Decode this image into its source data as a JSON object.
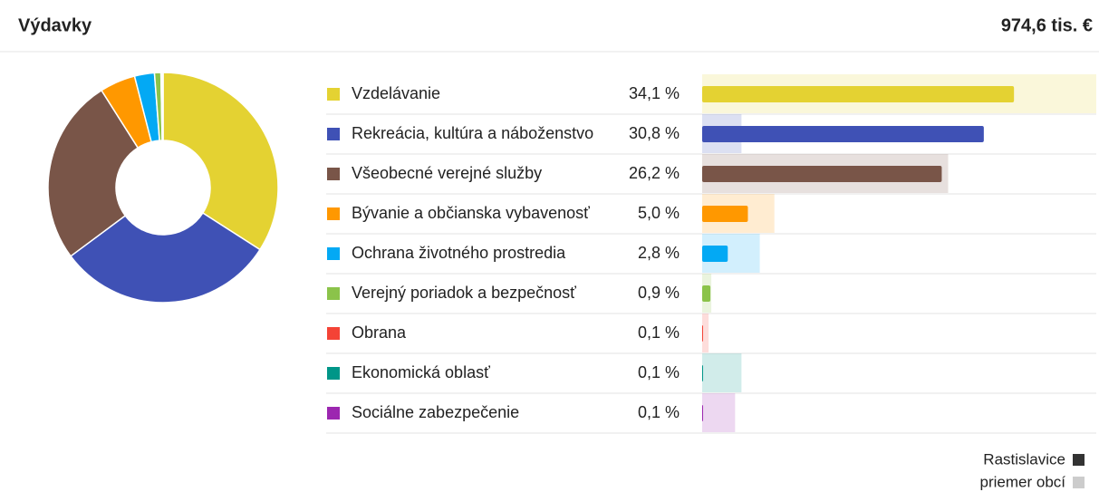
{
  "header": {
    "title": "Výdavky",
    "total": "974,6 tis. €"
  },
  "chart_data": {
    "type": "bar",
    "categories": [
      "Vzdelávanie",
      "Rekreácia, kultúra a náboženstvo",
      "Všeobecné verejné služby",
      "Bývanie a občianska vybavenosť",
      "Ochrana životného prostredia",
      "Verejný poriadok a bezpečnosť",
      "Obrana",
      "Ekonomická oblasť",
      "Sociálne zabezpečenie"
    ],
    "colors": [
      "#e4d232",
      "#3f51b5",
      "#795548",
      "#ff9800",
      "#03a9f4",
      "#8bc34a",
      "#f44336",
      "#009688",
      "#9c27b0"
    ],
    "series": [
      {
        "name": "Rastislavice",
        "color": "#333333",
        "values": [
          34.1,
          30.8,
          26.2,
          5.0,
          2.8,
          0.9,
          0.1,
          0.1,
          0.1
        ],
        "value_labels": [
          "34,1 %",
          "30,8 %",
          "26,2 %",
          "5,0 %",
          "2,8 %",
          "0,9 %",
          "0,1 %",
          "0,1 %",
          "0,1 %"
        ]
      },
      {
        "name": "priemer obcí",
        "color": "#cccccc",
        "values": [
          43.1,
          4.3,
          26.9,
          7.9,
          6.3,
          1.0,
          0.7,
          4.3,
          3.6
        ]
      }
    ],
    "xlim": [
      0,
      43.1
    ]
  }
}
